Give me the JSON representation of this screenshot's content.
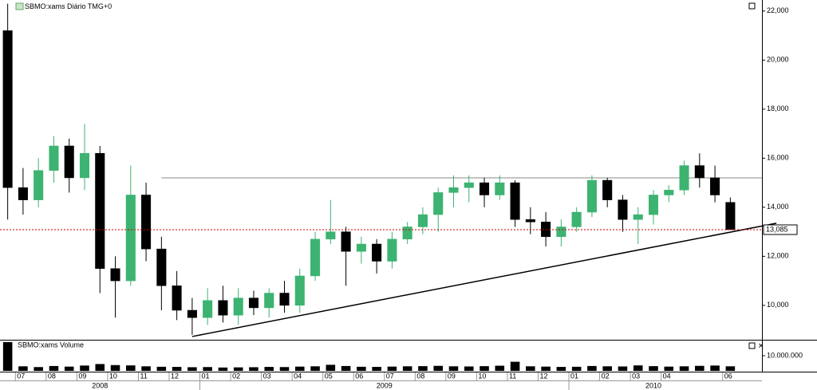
{
  "chart_data": {
    "type": "candlestick",
    "title": "SBMO:xams Diário TMG+0",
    "categories": [
      null,
      "07",
      null,
      "08",
      null,
      "09",
      null,
      "10",
      null,
      "11",
      null,
      "12",
      null,
      "01",
      null,
      "02",
      null,
      "03",
      null,
      "04",
      null,
      "05",
      null,
      "06",
      null,
      "07",
      null,
      "08",
      null,
      "09",
      null,
      "10",
      null,
      "11",
      null,
      "12",
      null,
      "01",
      null,
      "02",
      null,
      "03",
      null,
      "04",
      null,
      null,
      null,
      "06"
    ],
    "year_labels": [
      "2008",
      "2009",
      "2010"
    ],
    "open": [
      21200,
      14800,
      14300,
      15500,
      16500,
      15200,
      16200,
      11500,
      11000,
      14500,
      12300,
      10800,
      9800,
      9500,
      10200,
      9600,
      10300,
      9900,
      10500,
      10000,
      11200,
      12700,
      13000,
      12200,
      12500,
      11800,
      12700,
      13200,
      13700,
      14600,
      14800,
      15000,
      14500,
      15000,
      13500,
      13400,
      12800,
      13200,
      13800,
      15100,
      14300,
      13500,
      13700,
      14500,
      14700,
      15700,
      15200,
      14200
    ],
    "high": [
      22300,
      15600,
      16000,
      16900,
      16800,
      17400,
      16500,
      12000,
      15700,
      15000,
      12800,
      11400,
      10300,
      10700,
      10800,
      10700,
      10600,
      10700,
      11000,
      11500,
      13000,
      14300,
      13200,
      12800,
      12700,
      13000,
      13400,
      14000,
      14800,
      15300,
      15300,
      15200,
      15300,
      15100,
      14000,
      13800,
      13500,
      14000,
      15300,
      15200,
      14500,
      14000,
      14700,
      14900,
      15900,
      16200,
      15700,
      14400
    ],
    "low": [
      13500,
      13700,
      14000,
      15000,
      14600,
      14700,
      10500,
      9500,
      10800,
      11800,
      9800,
      9400,
      8800,
      9200,
      9300,
      9200,
      9600,
      9500,
      9700,
      9700,
      11000,
      12500,
      10800,
      11700,
      11300,
      11500,
      12500,
      12900,
      13000,
      14000,
      14200,
      14000,
      14300,
      13200,
      12900,
      12400,
      12400,
      13000,
      13600,
      14000,
      13000,
      12500,
      13300,
      14200,
      14500,
      14800,
      14200,
      13100
    ],
    "close": [
      14800,
      14300,
      15500,
      16500,
      15200,
      16200,
      11500,
      11000,
      14500,
      12300,
      10800,
      9800,
      9500,
      10200,
      9600,
      10300,
      9900,
      10500,
      10000,
      11200,
      12700,
      13000,
      12200,
      12500,
      11800,
      12700,
      13200,
      13700,
      14600,
      14800,
      15000,
      14500,
      15000,
      13500,
      13400,
      12800,
      13200,
      13800,
      15100,
      14300,
      13500,
      13700,
      14500,
      14700,
      15700,
      15200,
      14500,
      13085
    ],
    "up_color": "#3cb371",
    "down_color": "#000000",
    "ylim": [
      8630,
      22450
    ],
    "yticks": [
      {
        "value": 10000,
        "label": "10,000"
      },
      {
        "value": 12000,
        "label": "12,000"
      },
      {
        "value": 14000,
        "label": "14,000"
      },
      {
        "value": 16000,
        "label": "16,000"
      },
      {
        "value": 18000,
        "label": "18,000"
      },
      {
        "value": 20000,
        "label": "20,000"
      },
      {
        "value": 22000,
        "label": "22,000"
      }
    ],
    "last_price": {
      "value": 13085,
      "label": "13,085",
      "color": "#d40000"
    },
    "resistance": {
      "value": 15200,
      "from_index": 10,
      "color": "#888888"
    },
    "trendline": {
      "from": {
        "index": 12,
        "value": 8730
      },
      "to": {
        "index": 50,
        "value": 13350
      },
      "color": "#000000"
    },
    "volume": {
      "title": "SBMO:xams Volume",
      "values": [
        19000000,
        3000000,
        2500000,
        3200000,
        2800000,
        3500000,
        4500000,
        3800000,
        3600000,
        3000000,
        2700000,
        2600000,
        2400000,
        2500000,
        2200000,
        2300000,
        2400000,
        2600000,
        2500000,
        2800000,
        3000000,
        4000000,
        3200000,
        2700000,
        2600000,
        2800000,
        3000000,
        3100000,
        3300000,
        3000000,
        2900000,
        3100000,
        3400000,
        6000000,
        3000000,
        2800000,
        2600000,
        2700000,
        3200000,
        3000000,
        2900000,
        3600000,
        3100000,
        2800000,
        3000000,
        3300000,
        3500000,
        3000000
      ],
      "color": "#000000",
      "ylim": [
        0,
        20000000
      ],
      "yticks": [
        {
          "value": 10000000,
          "label": "10.000.000"
        }
      ]
    }
  }
}
